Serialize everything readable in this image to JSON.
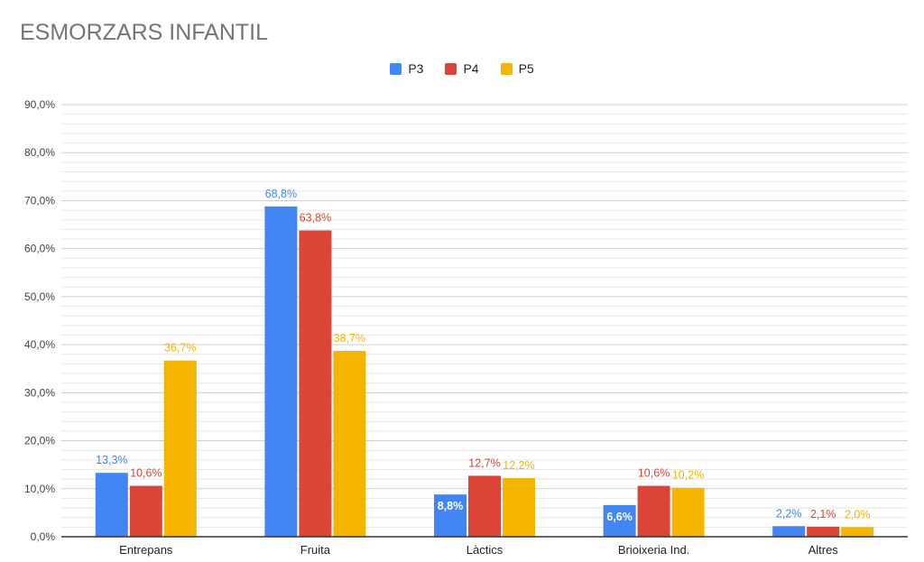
{
  "chart_data": {
    "type": "bar",
    "title": "ESMORZARS INFANTIL",
    "categories": [
      "Entrepans",
      "Fruita",
      "Làctics",
      "Brioixeria Ind.",
      "Altres"
    ],
    "series": [
      {
        "name": "P3",
        "color": "#4285f4",
        "values": [
          13.3,
          68.8,
          8.8,
          6.6,
          2.2
        ],
        "labels": [
          "13,3%",
          "68,8%",
          "8,8%",
          "6,6%",
          "2,2%"
        ]
      },
      {
        "name": "P4",
        "color": "#db4437",
        "values": [
          10.6,
          63.8,
          12.7,
          10.6,
          2.1
        ],
        "labels": [
          "10,6%",
          "63,8%",
          "12,7%",
          "10,6%",
          "2,1%"
        ]
      },
      {
        "name": "P5",
        "color": "#f4b400",
        "values": [
          36.7,
          38.7,
          12.2,
          10.2,
          2.0
        ],
        "labels": [
          "36,7%",
          "38,7%",
          "12,2%",
          "10,2%",
          "2,0%"
        ]
      }
    ],
    "ylim": [
      0,
      90
    ],
    "yticks": [
      0,
      10,
      20,
      30,
      40,
      50,
      60,
      70,
      80,
      90
    ],
    "ytick_labels": [
      "0,0%",
      "10,0%",
      "20,0%",
      "30,0%",
      "40,0%",
      "50,0%",
      "60,0%",
      "70,0%",
      "80,0%",
      "90,0%"
    ],
    "xlabel": "",
    "ylabel": "",
    "legend_position": "top-center",
    "grid": true,
    "minor_grid": true
  }
}
